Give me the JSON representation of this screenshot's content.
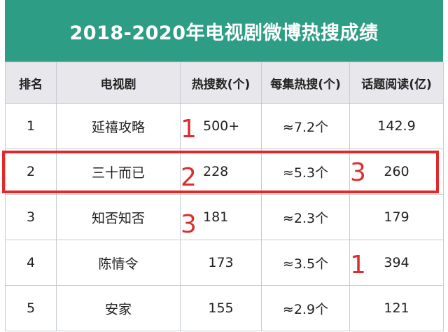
{
  "title": "2018-2020年电视剧微博热搜成绩",
  "headers": [
    "排名",
    "电视剧",
    "热搜数(个)",
    "每集热搜(个)",
    "话题阅读(亿)"
  ],
  "rows": [
    {
      "rank": "1",
      "drama": "延禧攻略",
      "hot": "500+",
      "per_ep": "≈7.2个",
      "read": "142.9"
    },
    {
      "rank": "2",
      "drama": "三十而已",
      "hot": "228",
      "per_ep": "≈5.3个",
      "read": "260"
    },
    {
      "rank": "3",
      "drama": "知否知否",
      "hot": "181",
      "per_ep": "≈2.3个",
      "read": "179"
    },
    {
      "rank": "4",
      "drama": "陈情令",
      "hot": "173",
      "per_ep": "≈3.5个",
      "read": "394"
    },
    {
      "rank": "5",
      "drama": "安家",
      "hot": "155",
      "per_ep": "≈2.9个",
      "read": "121"
    }
  ],
  "annotations": {
    "hot_mark_1": "1",
    "hot_mark_2": "2",
    "hot_mark_3": "3",
    "read_mark_3": "3",
    "read_mark_1": "1"
  },
  "colors": {
    "title_bg": "#2e9d86",
    "header_bg": "#e8e8ec",
    "mark_red": "#d7302e"
  }
}
